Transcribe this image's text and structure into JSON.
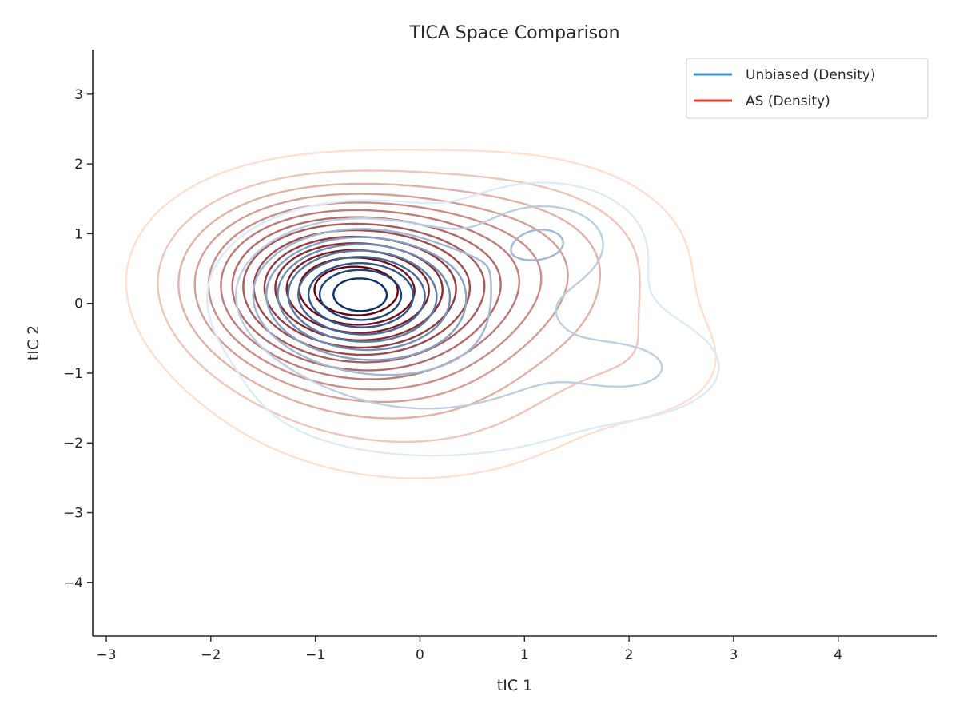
{
  "chart_data": {
    "type": "contour",
    "title": "TICA Space Comparison",
    "xlabel": "tIC 1",
    "ylabel": "tIC 2",
    "xlim": [
      -3.13,
      4.95
    ],
    "ylim": [
      -4.77,
      3.64
    ],
    "x_ticks": [
      -3,
      -2,
      -1,
      0,
      1,
      2,
      3,
      4
    ],
    "y_ticks": [
      -4,
      -3,
      -2,
      -1,
      0,
      1,
      2,
      3
    ],
    "x_tick_labels": [
      "−3",
      "−2",
      "−1",
      "0",
      "1",
      "2",
      "3",
      "4"
    ],
    "y_tick_labels": [
      "−4",
      "−3",
      "−2",
      "−1",
      "0",
      "1",
      "2",
      "3"
    ],
    "grid": false,
    "legend": {
      "position": "top-right",
      "entries": [
        {
          "label": "Unbiased (Density)",
          "color": "#4292c6"
        },
        {
          "label": "AS (Density)",
          "color": "#ef3b2c"
        }
      ]
    },
    "series": [
      {
        "name": "Unbiased (Density)",
        "colormap": "Blues",
        "color_light": "#deebf7",
        "color_dark": "#08306b",
        "levels": 10,
        "components": [
          {
            "cx": -0.6,
            "cy": 0.15,
            "sx": 0.6,
            "sy": 0.55,
            "w": 1.0
          },
          {
            "cx": 1.2,
            "cy": 0.95,
            "sx": 0.5,
            "sy": 0.45,
            "w": 0.22
          },
          {
            "cx": 2.15,
            "cy": -0.95,
            "sx": 0.5,
            "sy": 0.4,
            "w": 0.12
          },
          {
            "cx": 0.9,
            "cy": -0.4,
            "sx": 1.0,
            "sy": 1.0,
            "w": 0.15
          },
          {
            "cx": -0.3,
            "cy": -1.2,
            "sx": 1.0,
            "sy": 0.7,
            "w": 0.12
          }
        ]
      },
      {
        "name": "AS (Density)",
        "colormap": "Reds",
        "color_light": "#fee0d2",
        "color_dark": "#67000d",
        "levels": 14,
        "components": [
          {
            "cx": -0.6,
            "cy": 0.15,
            "sx": 0.85,
            "sy": 0.8,
            "w": 1.0
          },
          {
            "cx": 0.9,
            "cy": 0.6,
            "sx": 1.0,
            "sy": 0.9,
            "w": 0.3
          },
          {
            "cx": 2.3,
            "cy": -0.9,
            "sx": 0.6,
            "sy": 0.6,
            "w": 0.08
          },
          {
            "cx": -1.3,
            "cy": 0.5,
            "sx": 0.8,
            "sy": 0.8,
            "w": 0.25
          },
          {
            "cx": 0.0,
            "cy": -1.3,
            "sx": 1.2,
            "sy": 0.9,
            "w": 0.18
          }
        ]
      }
    ]
  }
}
